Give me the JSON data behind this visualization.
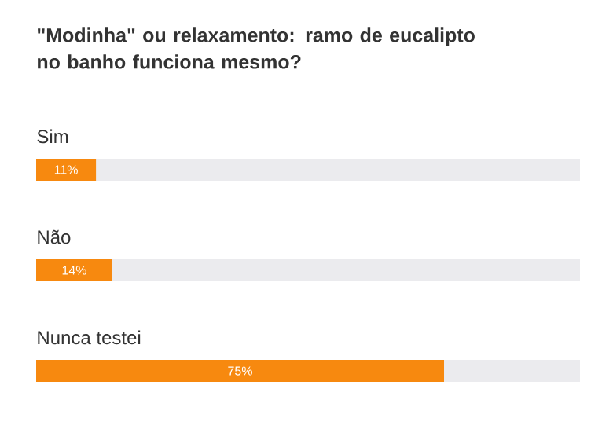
{
  "chart_data": {
    "type": "bar",
    "orientation": "horizontal",
    "stacked": true,
    "title": "\"Modinha\" ou relaxamento: ramo de eucalipto no banho funciona mesmo?",
    "categories": [
      "Sim",
      "Não",
      "Nunca testei"
    ],
    "series": [
      {
        "color": "#f7890f",
        "values": [
          11,
          14,
          75
        ],
        "value_labels": [
          "11%",
          "14%",
          "75%"
        ]
      },
      {
        "color": "#ebebee",
        "values": [
          89,
          86,
          25
        ]
      }
    ],
    "xlim": [
      0,
      100
    ],
    "tick_labels": false
  }
}
